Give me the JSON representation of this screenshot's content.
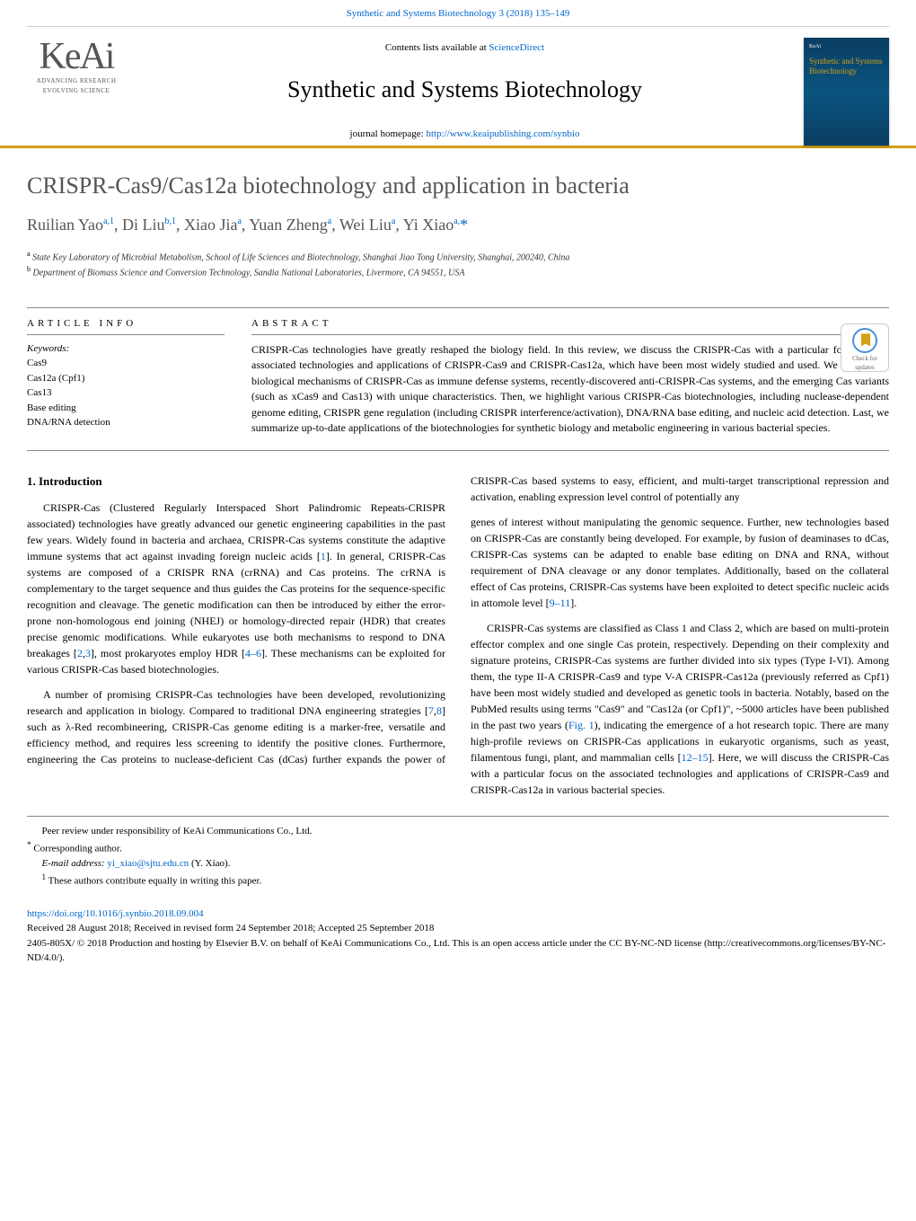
{
  "top_link": {
    "prefix": "Synthetic and Systems Biotechnology 3 (2018) 135–149",
    "href_text": "Synthetic and Systems Biotechnology 3 (2018) 135–149"
  },
  "header": {
    "contents_prefix": "Contents lists available at ",
    "contents_link": "ScienceDirect",
    "journal_name": "Synthetic and Systems Biotechnology",
    "homepage_prefix": "journal homepage: ",
    "homepage_link": "http://www.keaipublishing.com/synbio",
    "keai_tag1": "ADVANCING RESEARCH",
    "keai_tag2": "EVOLVING SCIENCE",
    "cover_title": "Synthetic and Systems Biotechnology"
  },
  "check_updates_label": "Check for updates",
  "article": {
    "title": "CRISPR-Cas9/Cas12a biotechnology and application in bacteria",
    "authors_html": "Ruilian Yao<sup>a,1</sup>, Di Liu<sup>b,1</sup>, Xiao Jia<sup>a</sup>, Yuan Zheng<sup>a</sup>, Wei Liu<sup>a</sup>, Yi Xiao<sup>a,</sup><span class='corr'>*</span>",
    "affiliations": [
      {
        "mark": "a",
        "text": "State Key Laboratory of Microbial Metabolism, School of Life Sciences and Biotechnology, Shanghai Jiao Tong University, Shanghai, 200240, China"
      },
      {
        "mark": "b",
        "text": "Department of Biomass Science and Conversion Technology, Sandia National Laboratories, Livermore, CA 94551, USA"
      }
    ]
  },
  "info": {
    "label": "ARTICLE INFO",
    "keywords_label": "Keywords:",
    "keywords": [
      "Cas9",
      "Cas12a (Cpf1)",
      "Cas13",
      "Base editing",
      "DNA/RNA detection"
    ]
  },
  "abstract": {
    "label": "ABSTRACT",
    "text": "CRISPR-Cas technologies have greatly reshaped the biology field. In this review, we discuss the CRISPR-Cas with a particular focus on the associated technologies and applications of CRISPR-Cas9 and CRISPR-Cas12a, which have been most widely studied and used. We discuss the biological mechanisms of CRISPR-Cas as immune defense systems, recently-discovered anti-CRISPR-Cas systems, and the emerging Cas variants (such as xCas9 and Cas13) with unique characteristics. Then, we highlight various CRISPR-Cas biotechnologies, including nuclease-dependent genome editing, CRISPR gene regulation (including CRISPR interference/activation), DNA/RNA base editing, and nucleic acid detection. Last, we summarize up-to-date applications of the biotechnologies for synthetic biology and metabolic engineering in various bacterial species."
  },
  "body": {
    "section_heading": "1. Introduction",
    "p1": "CRISPR-Cas (Clustered Regularly Interspaced Short Palindromic Repeats-CRISPR associated) technologies have greatly advanced our genetic engineering capabilities in the past few years. Widely found in bacteria and archaea, CRISPR-Cas systems constitute the adaptive immune systems that act against invading foreign nucleic acids [<a href='#'>1</a>]. In general, CRISPR-Cas systems are composed of a CRISPR RNA (crRNA) and Cas proteins. The crRNA is complementary to the target sequence and thus guides the Cas proteins for the sequence-specific recognition and cleavage. The genetic modification can then be introduced by either the error-prone non-homologous end joining (NHEJ) or homology-directed repair (HDR) that creates precise genomic modifications. While eukaryotes use both mechanisms to respond to DNA breakages [<a href='#'>2</a>,<a href='#'>3</a>], most prokaryotes employ HDR [<a href='#'>4–6</a>]. These mechanisms can be exploited for various CRISPR-Cas based biotechnologies.",
    "p2": "A number of promising CRISPR-Cas technologies have been developed, revolutionizing research and application in biology. Compared to traditional DNA engineering strategies [<a href='#'>7</a>,<a href='#'>8</a>] such as λ-Red recombineering, CRISPR-Cas genome editing is a marker-free, versatile and efficiency method, and requires less screening to identify the positive clones. Furthermore, engineering the Cas proteins to nuclease-deficient Cas (dCas) further expands the power of CRISPR-Cas based systems to easy, efficient, and multi-target transcriptional repression and activation, enabling expression level control of potentially any",
    "p3": "genes of interest without manipulating the genomic sequence. Further, new technologies based on CRISPR-Cas are constantly being developed. For example, by fusion of deaminases to dCas, CRISPR-Cas systems can be adapted to enable base editing on DNA and RNA, without requirement of DNA cleavage or any donor templates. Additionally, based on the collateral effect of Cas proteins, CRISPR-Cas systems have been exploited to detect specific nucleic acids in attomole level [<a href='#'>9–11</a>].",
    "p4": "CRISPR-Cas systems are classified as Class 1 and Class 2, which are based on multi-protein effector complex and one single Cas protein, respectively. Depending on their complexity and signature proteins, CRISPR-Cas systems are further divided into six types (Type I-VI). Among them, the type II-A CRISPR-Cas9 and type V-A CRISPR-Cas12a (previously referred as Cpf1) have been most widely studied and developed as genetic tools in bacteria. Notably, based on the PubMed results using terms \"Cas9\" and \"Cas12a (or Cpf1)\", ~5000 articles have been published in the past two years (<a href='#'>Fig. 1</a>), indicating the emergence of a hot research topic. There are many high-profile reviews on CRISPR-Cas applications in eukaryotic organisms, such as yeast, filamentous fungi, plant, and mammalian cells [<a href='#'>12–15</a>]. Here, we will discuss the CRISPR-Cas with a particular focus on the associated technologies and applications of CRISPR-Cas9 and CRISPR-Cas12a in various bacterial species."
  },
  "footer": {
    "peer_review": "Peer review under responsibility of KeAi Communications Co., Ltd.",
    "corresponding": "Corresponding author.",
    "email_prefix": "E-mail address: ",
    "email": "yi_xiao@sjtu.edu.cn",
    "email_suffix": " (Y. Xiao).",
    "equal": "These authors contribute equally in writing this paper.",
    "doi": "https://doi.org/10.1016/j.synbio.2018.09.004",
    "received": "Received 28 August 2018; Received in revised form 24 September 2018; Accepted 25 September 2018",
    "license": "2405-805X/ © 2018 Production and hosting by Elsevier B.V. on behalf of KeAi Communications Co., Ltd. This is an open access article under the CC BY-NC-ND license (http://creativecommons.org/licenses/BY-NC-ND/4.0/)."
  },
  "colors": {
    "accent_gold": "#d4a017",
    "link_blue": "#0066cc",
    "gray_text": "#555555",
    "rule_gray": "#888888",
    "cover_bg": "#0a3d62"
  }
}
